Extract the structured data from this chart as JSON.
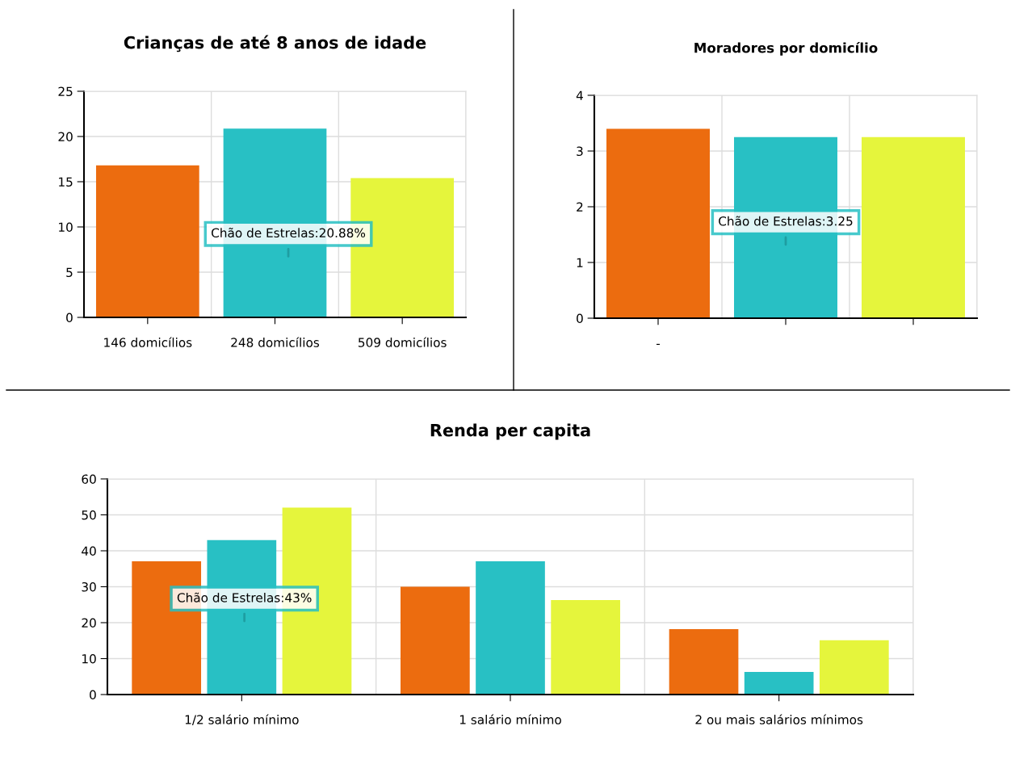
{
  "chart_data": [
    {
      "type": "bar",
      "title": "Crianças de até 8 anos de idade",
      "categories": [
        "146 domicílios",
        "248 domicílios",
        "509 domicílios"
      ],
      "values": [
        16.8,
        20.88,
        15.4
      ],
      "colors": [
        "#ec6c0f",
        "#28c0c4",
        "#e5f53c"
      ],
      "ylim": [
        0,
        25
      ],
      "yticks": [
        0,
        5,
        10,
        15,
        20,
        25
      ],
      "grid": true,
      "legend": false,
      "annotations": [
        "Chão de Estrelas:20.88%"
      ]
    },
    {
      "type": "bar",
      "title": "Moradores por domicílio",
      "categories": [
        "-",
        null,
        null
      ],
      "values": [
        3.4,
        3.25,
        3.25
      ],
      "colors": [
        "#ec6c0f",
        "#28c0c4",
        "#e5f53c"
      ],
      "ylim": [
        0,
        4
      ],
      "yticks": [
        0,
        1,
        2,
        3,
        4
      ],
      "grid": true,
      "legend": false,
      "annotations": [
        "Chão de Estrelas:3.25"
      ]
    },
    {
      "type": "bar",
      "title": "Renda per capita",
      "categories": [
        "1/2 salário mínimo",
        "1 salário mínimo",
        "2 ou mais salários mínimos"
      ],
      "ylim": [
        0,
        60
      ],
      "yticks": [
        0,
        10,
        20,
        30,
        40,
        50,
        60
      ],
      "grid": true,
      "legend": false,
      "series": [
        {
          "color": "#ec6c0f",
          "values": [
            37.1,
            30,
            18.2
          ]
        },
        {
          "color": "#28c0c4",
          "values": [
            43,
            37.1,
            6.3
          ]
        },
        {
          "color": "#e5f53c",
          "values": [
            52,
            26.3,
            15.1
          ]
        }
      ],
      "annotations": [
        "Chão de Estrelas:43%"
      ]
    }
  ]
}
